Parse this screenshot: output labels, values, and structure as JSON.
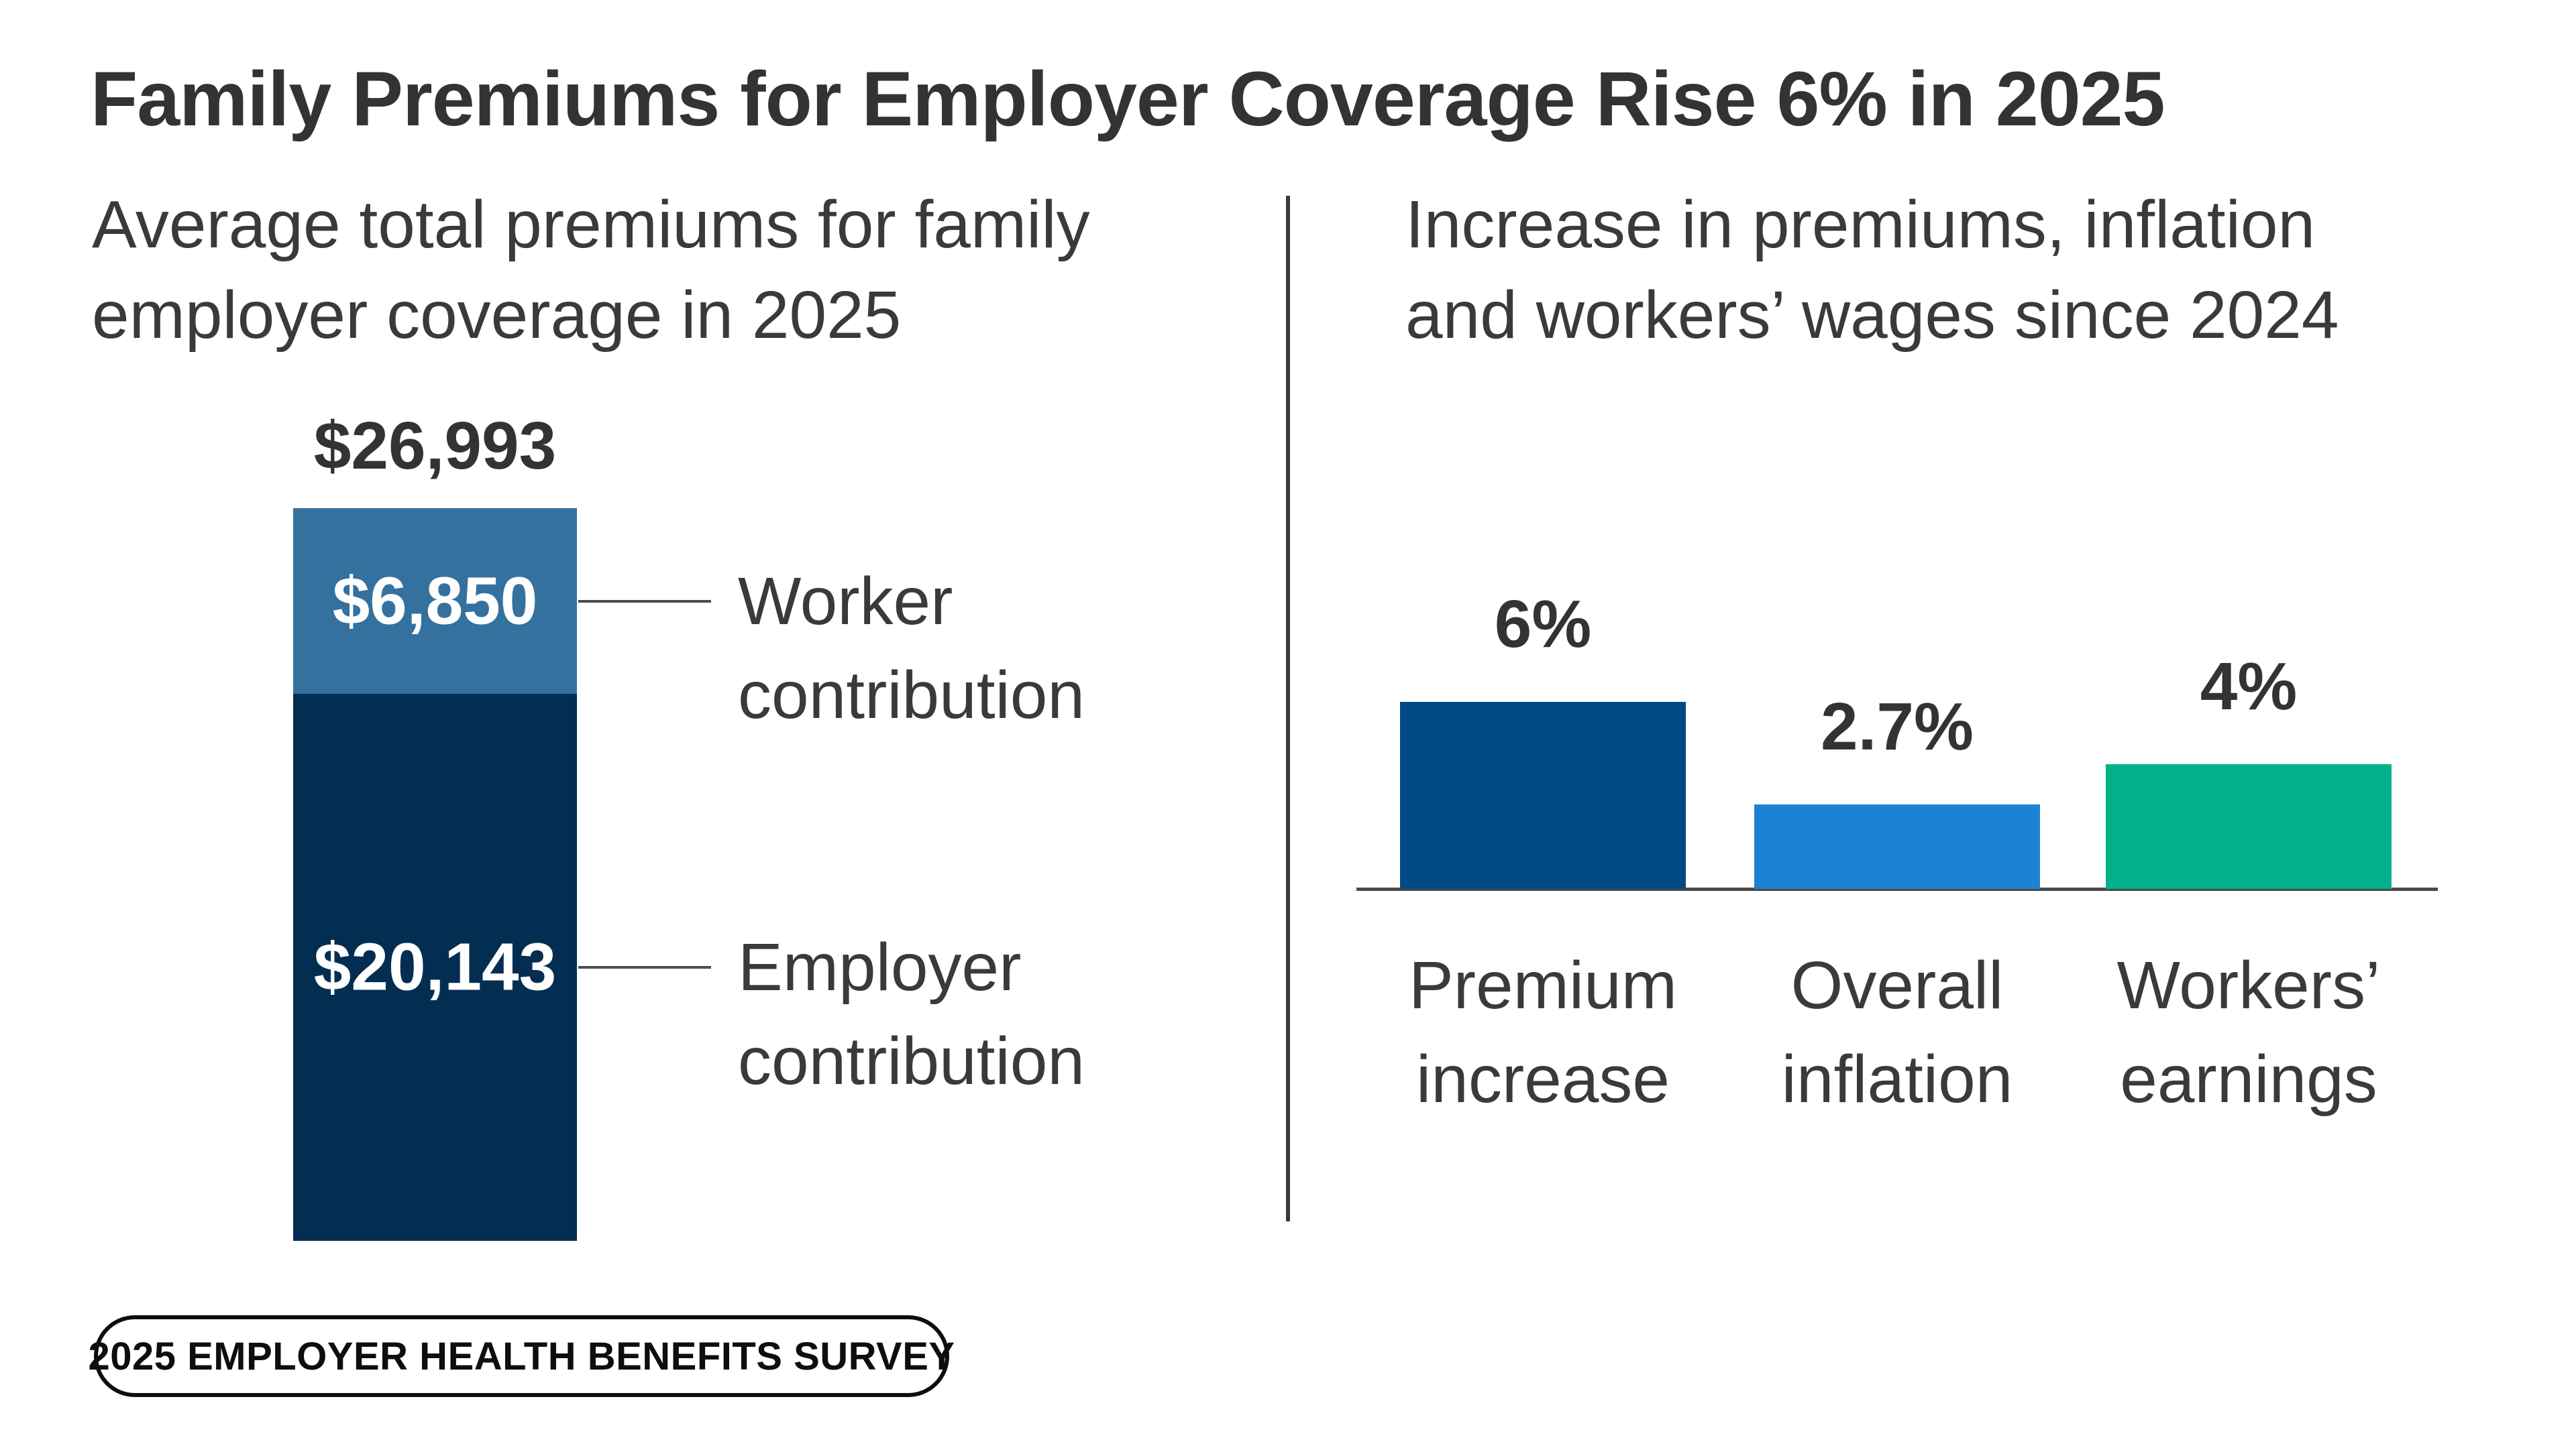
{
  "header": {
    "title": "Family Premiums for Employer Coverage Rise 6% in 2025"
  },
  "footer": {
    "badge": "2025 EMPLOYER HEALTH BENEFITS SURVEY"
  },
  "colors": {
    "title_text": "#333333",
    "body_text": "#3a3a3a",
    "worker_blue": "#35719E",
    "employer_navy": "#032E52",
    "premium_increase_blue": "#004985",
    "overall_inflation_blue": "#1C82D4",
    "workers_earnings_green": "#00B189",
    "axis_gray": "#4a4a4a",
    "divider_gray": "#3a3a3a",
    "background": "#ffffff"
  },
  "chart_data": [
    {
      "type": "bar",
      "subtype": "single_stacked_column",
      "title": "Average total premiums for family employer coverage in 2025",
      "title_lines": "Average total premiums for family\nemployer coverage in 2025",
      "total_label": "$26,993",
      "total_value": 26993,
      "grid": false,
      "axes": "none",
      "legend_position": "right-callouts",
      "segments": [
        {
          "key": "worker-contribution",
          "name": "Worker contribution",
          "name_lines": "Worker\ncontribution",
          "label": "$6,850",
          "value": 6850,
          "color": "#35719E"
        },
        {
          "key": "employer-contribution",
          "name": "Employer contribution",
          "name_lines": "Employer\ncontribution",
          "label": "$20,143",
          "value": 20143,
          "color": "#032E52"
        }
      ]
    },
    {
      "type": "bar",
      "title": "Increase in premiums, inflation and workers’ wages since 2024",
      "title_lines": "Increase in premiums, inflation\nand workers’ wages since 2024",
      "categories": [
        "Premium increase",
        "Overall inflation",
        "Workers’ earnings"
      ],
      "category_lines": [
        "Premium\nincrease",
        "Overall\ninflation",
        "Workers’\nearnings"
      ],
      "values": [
        6,
        2.7,
        4
      ],
      "value_labels": [
        "6%",
        "2.7%",
        "4%"
      ],
      "bar_colors": [
        "#004985",
        "#1C82D4",
        "#00B189"
      ],
      "category_keys": [
        "premium-increase",
        "overall-inflation",
        "workers-earnings"
      ],
      "xlabel": "",
      "ylabel": "",
      "ylim": [
        0,
        6.5
      ],
      "grid": false,
      "baseline_axis": true
    }
  ]
}
